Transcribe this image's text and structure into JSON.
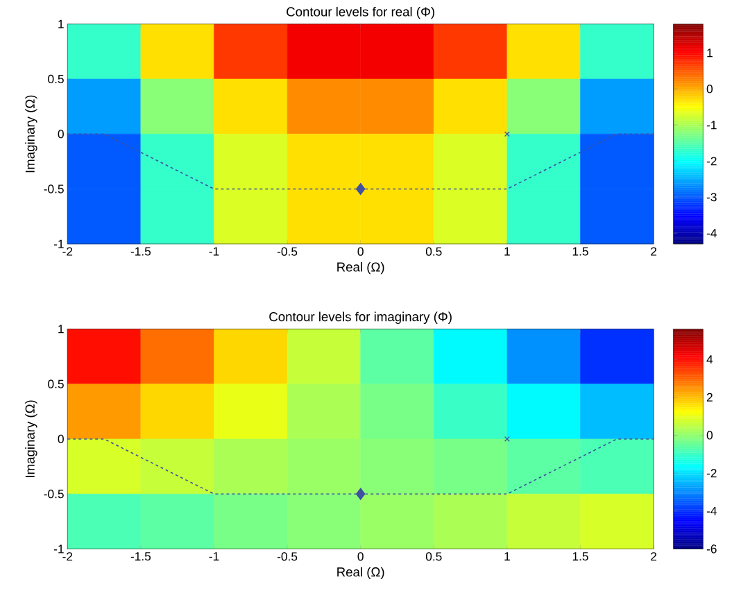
{
  "chart_data": [
    {
      "type": "heatmap",
      "title": "Contour levels for real (Φ)",
      "xlabel": "Real (Ω)",
      "ylabel": "Imaginary (Ω)",
      "x": [
        -1.75,
        -1.25,
        -0.75,
        -0.25,
        0.25,
        0.75,
        1.25,
        1.75
      ],
      "y": [
        0.75,
        0.25,
        -0.25,
        -0.75
      ],
      "cells": [
        [
          -1.7,
          -0.3,
          0.7,
          1.1,
          1.1,
          0.7,
          -0.3,
          -1.7
        ],
        [
          -2.6,
          -1.2,
          -0.3,
          0.2,
          0.2,
          -0.3,
          -1.2,
          -2.6
        ],
        [
          -3.0,
          -1.7,
          -0.7,
          -0.3,
          -0.3,
          -0.7,
          -1.7,
          -3.0
        ],
        [
          -3.0,
          -1.7,
          -0.7,
          -0.3,
          -0.3,
          -0.7,
          -1.7,
          -3.0
        ]
      ],
      "xlim": [
        -2,
        2
      ],
      "ylim": [
        -1,
        1
      ],
      "xticks": [
        -2,
        -1.5,
        -1,
        -0.5,
        0,
        0.5,
        1,
        1.5,
        2
      ],
      "yticks": [
        -1,
        -0.5,
        0,
        0.5,
        1
      ],
      "clim": [
        -4.3,
        1.8
      ],
      "cticks": [
        -4,
        -3,
        -2,
        -1,
        0,
        1
      ],
      "series": [
        {
          "type": "line",
          "x": [
            -2,
            -1.75,
            -1,
            1,
            1.75,
            2
          ],
          "values": [
            0,
            0,
            -0.5,
            -0.5,
            0,
            0
          ],
          "color": "#3f51a0",
          "line_style": "dashed",
          "marker": "none"
        },
        {
          "type": "scatter",
          "x": [
            0
          ],
          "values": [
            -0.5
          ],
          "color": "#3f51a0",
          "marker": "diamond"
        },
        {
          "type": "scatter",
          "x": [
            1
          ],
          "values": [
            0
          ],
          "color": "#3f51a0",
          "marker": "cross"
        }
      ]
    },
    {
      "type": "heatmap",
      "title": "Contour levels for imaginary (Φ)",
      "xlabel": "Real (Ω)",
      "ylabel": "Imaginary (Ω)",
      "x": [
        -1.75,
        -1.25,
        -0.75,
        -0.25,
        0.25,
        0.75,
        1.25,
        1.75
      ],
      "y": [
        0.75,
        0.25,
        -0.25,
        -0.75
      ],
      "cells": [
        [
          4.0,
          2.9,
          1.7,
          0.6,
          -0.6,
          -1.7,
          -2.9,
          -4.0
        ],
        [
          2.4,
          1.7,
          1.0,
          0.3,
          -0.3,
          -1.0,
          -1.7,
          -2.4
        ],
        [
          0.8,
          0.6,
          0.3,
          0.1,
          -0.1,
          -0.3,
          -0.6,
          -0.8
        ],
        [
          -0.8,
          -0.6,
          -0.3,
          -0.1,
          0.1,
          0.3,
          0.6,
          0.8
        ]
      ],
      "xlim": [
        -2,
        2
      ],
      "ylim": [
        -1,
        1
      ],
      "xticks": [
        -2,
        -1.5,
        -1,
        -0.5,
        0,
        0.5,
        1,
        1.5,
        2
      ],
      "yticks": [
        -1,
        -0.5,
        0,
        0.5,
        1
      ],
      "clim": [
        -6,
        5.6
      ],
      "cticks": [
        -6,
        -4,
        -2,
        0,
        2,
        4
      ],
      "series": [
        {
          "type": "line",
          "x": [
            -2,
            -1.75,
            -1,
            1,
            1.75,
            2
          ],
          "values": [
            0,
            0,
            -0.5,
            -0.5,
            0,
            0
          ],
          "color": "#3f51a0",
          "line_style": "dashed",
          "marker": "none"
        },
        {
          "type": "scatter",
          "x": [
            0
          ],
          "values": [
            -0.5
          ],
          "color": "#3f51a0",
          "marker": "diamond"
        },
        {
          "type": "scatter",
          "x": [
            1
          ],
          "values": [
            0
          ],
          "color": "#3f51a0",
          "marker": "cross"
        }
      ]
    }
  ]
}
